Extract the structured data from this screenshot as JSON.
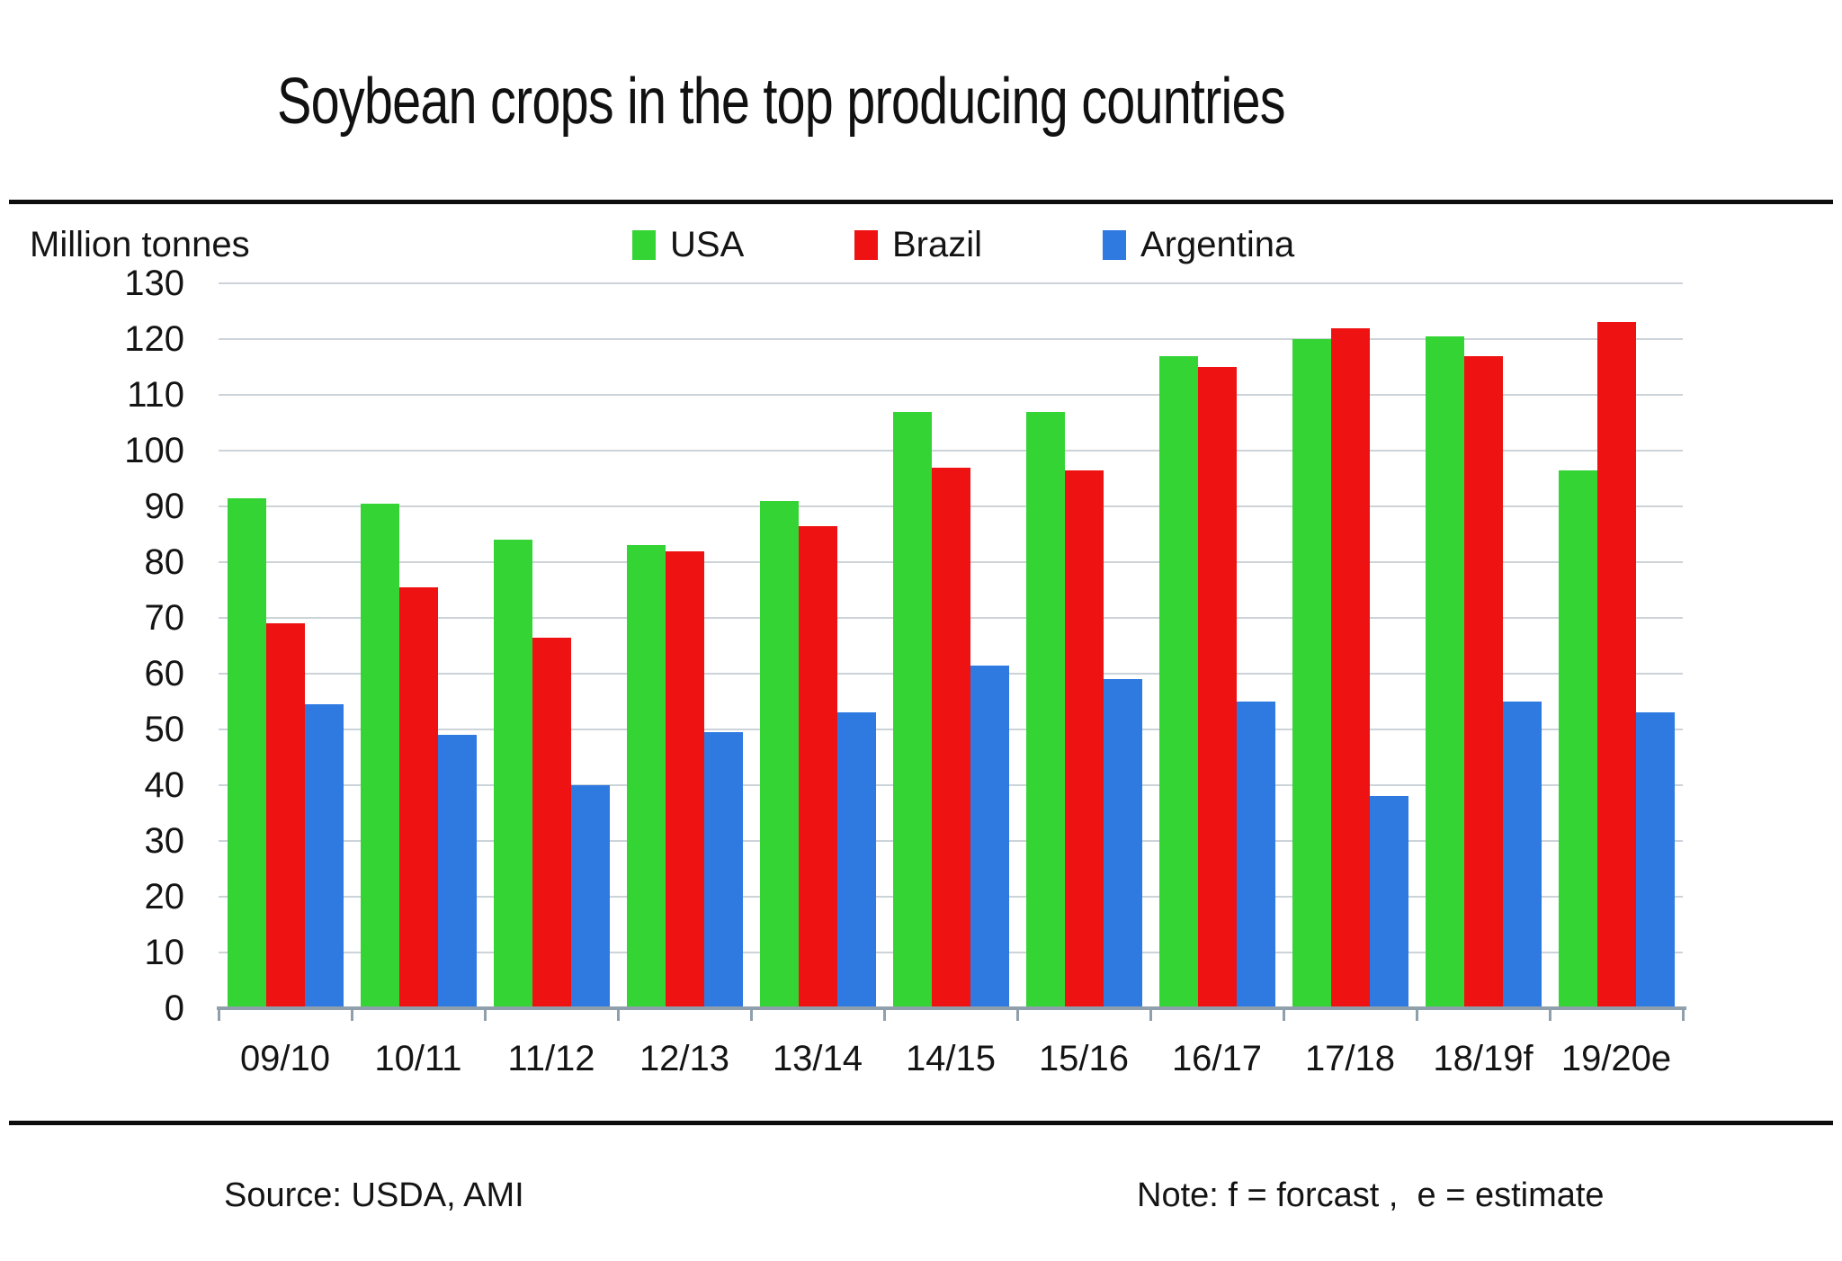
{
  "title": "Soybean crops in the top producing countries",
  "footer": {
    "source": "Source: USDA, AMI",
    "note": "Note: f = forcast ,  e = estimate"
  },
  "chart_data": {
    "type": "bar",
    "title": "Soybean crops in the top producing countries",
    "unit_label": "Million tonnes",
    "xlabel": "",
    "ylabel": "Million tonnes",
    "categories": [
      "09/10",
      "10/11",
      "11/12",
      "12/13",
      "13/14",
      "14/15",
      "15/16",
      "16/17",
      "17/18",
      "18/19f",
      "19/20e"
    ],
    "series": [
      {
        "name": "USA",
        "color": "#35d435",
        "values": [
          91.5,
          90.5,
          84,
          83,
          91,
          107,
          107,
          117,
          120,
          120.5,
          96.5
        ]
      },
      {
        "name": "Brazil",
        "color": "#ee1212",
        "values": [
          69,
          75.5,
          66.5,
          82,
          86.5,
          97,
          96.5,
          115,
          122,
          117,
          123
        ]
      },
      {
        "name": "Argentina",
        "color": "#2e7ae1",
        "values": [
          54.5,
          49,
          40,
          49.5,
          53,
          61.5,
          59,
          55,
          38,
          55,
          53
        ]
      }
    ],
    "y_axis": {
      "min": 0,
      "max": 130,
      "step": 10
    },
    "grid": true,
    "legend_position": "top",
    "colors": {
      "gridline": "#ccd3d9",
      "axis": "#8fa0ac",
      "text": "#141414",
      "divider": "#0d0d0d"
    },
    "legend_item_x": [
      703,
      950,
      1226
    ]
  }
}
